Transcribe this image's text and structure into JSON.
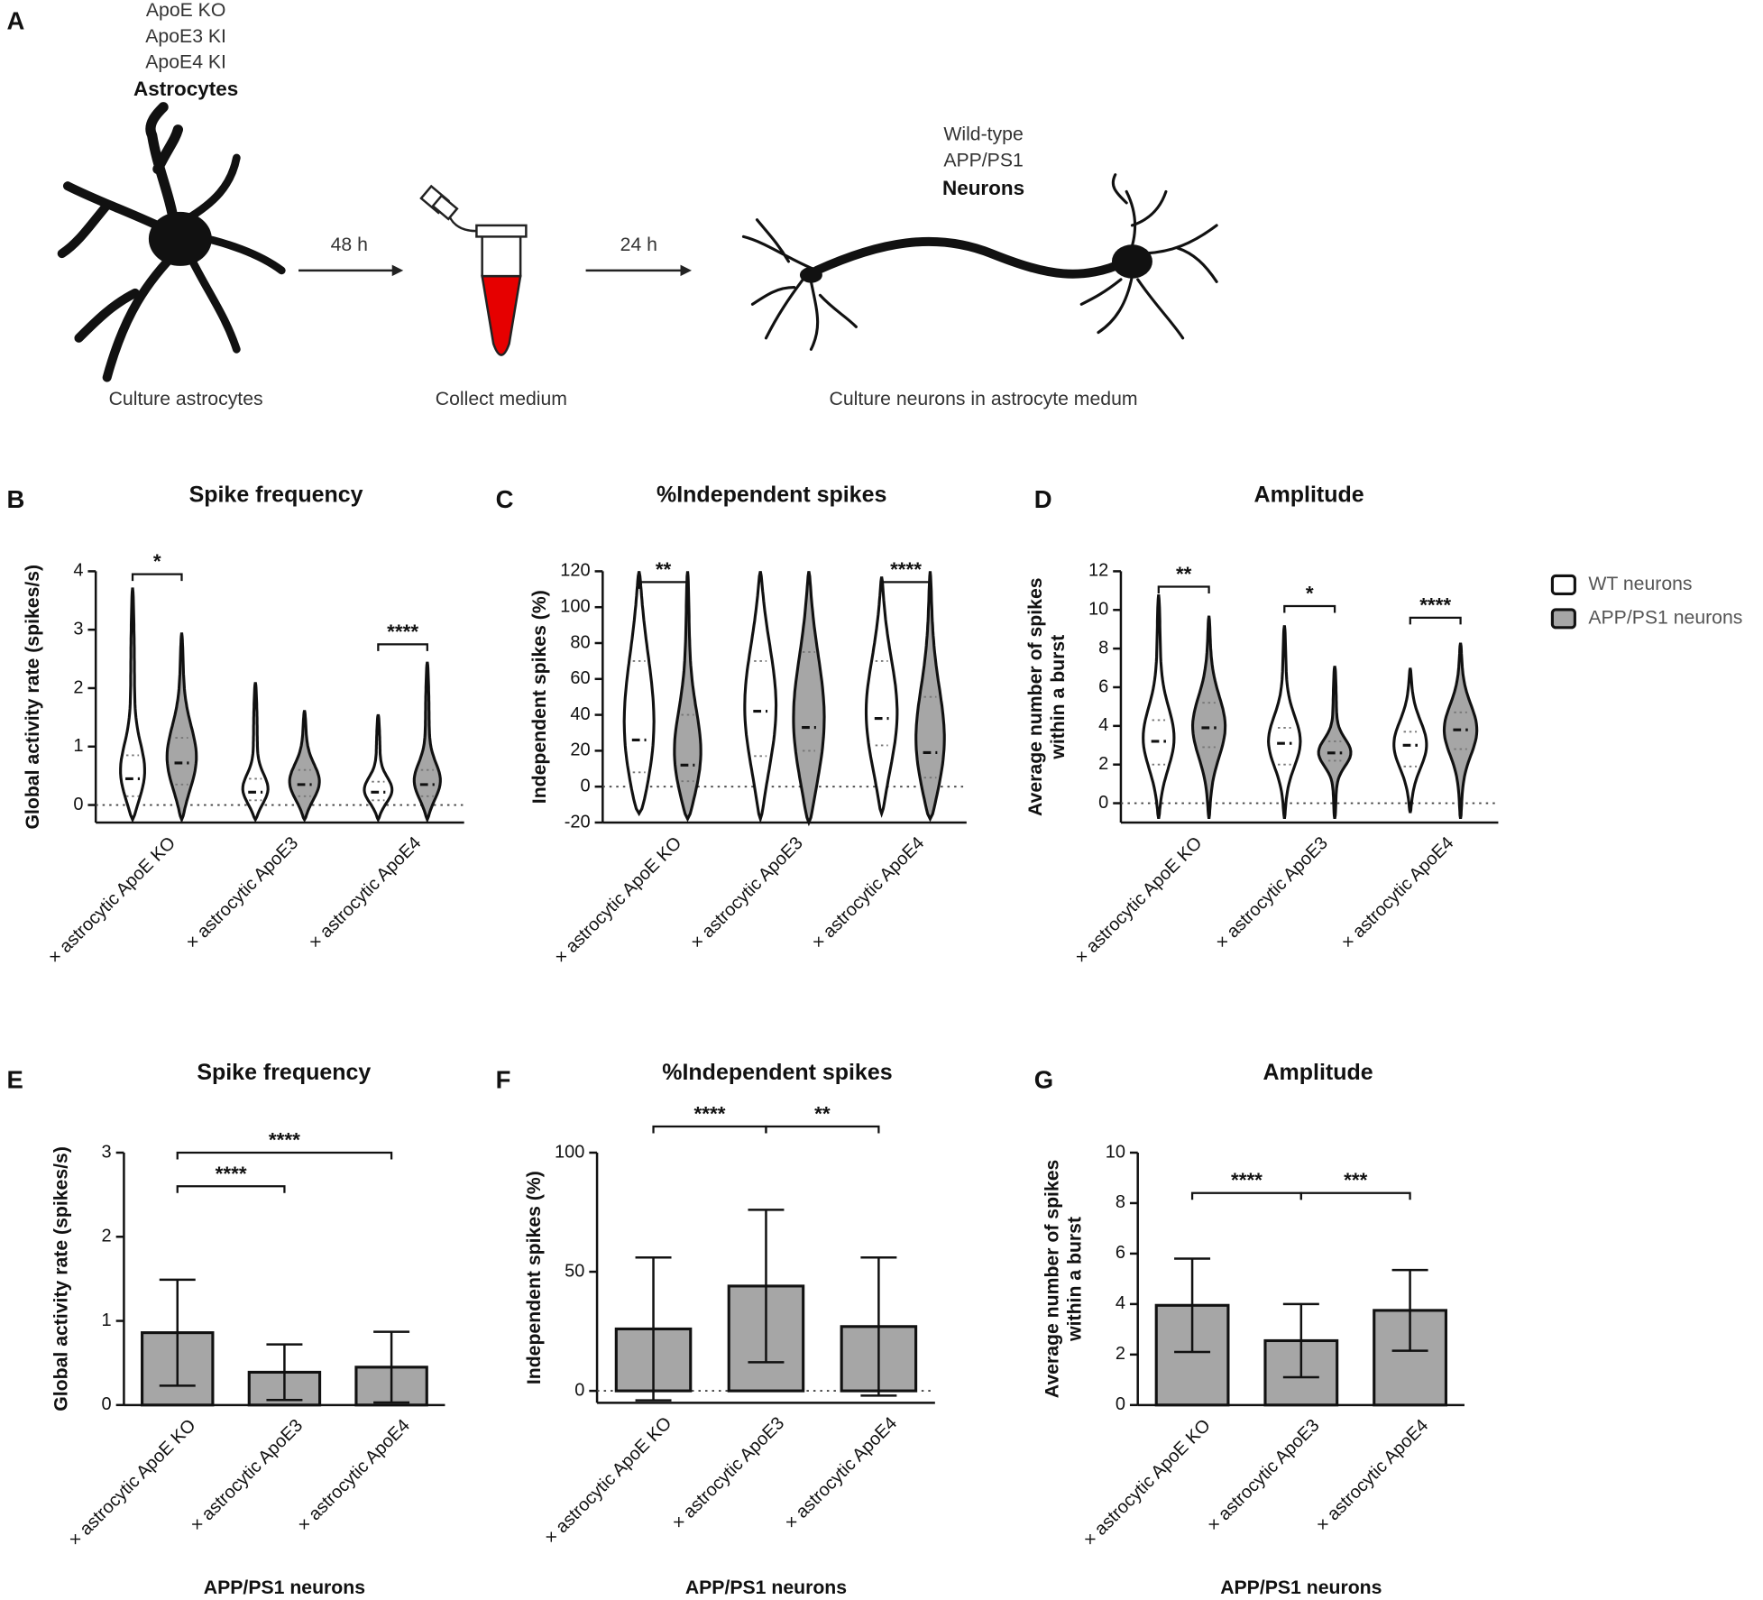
{
  "panel_a": {
    "panel": "A",
    "astrocyte_types": [
      "ApoE KO",
      "ApoE3 KI",
      "ApoE4 KI"
    ],
    "astrocyte_title": "Astrocytes",
    "step1": "48 h",
    "step2": "24 h",
    "neuron_types": [
      "Wild-type",
      "APP/PS1"
    ],
    "neuron_title": "Neurons",
    "captions": [
      "Culture astrocytes",
      "Collect medium",
      "Culture neurons in astrocyte medum"
    ]
  },
  "chart_data": [
    {
      "type": "violin",
      "panel": "B",
      "title": "Spike frequency",
      "ylabel": "Global activity rate (spikes/s)",
      "categories": [
        "× astrocytic ApoE KO",
        "× astrocytic ApoE3",
        "× astrocytic ApoE4"
      ],
      "series": [
        {
          "name": "WT neurons",
          "color": "#ffffff",
          "values": [
            0.45,
            0.22,
            0.22
          ],
          "q1": [
            0.15,
            0.08,
            0.08
          ],
          "q3": [
            0.85,
            0.45,
            0.4
          ],
          "max": [
            3.72,
            2.1,
            1.55
          ],
          "min": [
            -0.25,
            -0.25,
            -0.25
          ]
        },
        {
          "name": "APP/PS1 neurons",
          "color": "#a6a6a6",
          "values": [
            0.72,
            0.35,
            0.35
          ],
          "q1": [
            0.35,
            0.15,
            0.15
          ],
          "q3": [
            1.15,
            0.6,
            0.6
          ],
          "max": [
            2.95,
            1.62,
            2.45
          ],
          "min": [
            -0.25,
            -0.25,
            -0.25
          ]
        }
      ],
      "ylim": [
        -0.3,
        4
      ],
      "yticks": [
        0,
        1,
        2,
        3,
        4
      ],
      "zero_line": true,
      "annotations": [
        {
          "text": "*",
          "from": 0,
          "to": 0,
          "y": 3.95
        },
        {
          "text": "****",
          "from": 2,
          "to": 2,
          "y": 2.75
        }
      ]
    },
    {
      "type": "violin",
      "panel": "C",
      "title": "%Independent spikes",
      "ylabel": "Independent spikes (%)",
      "categories": [
        "× astrocytic ApoE KO",
        "× astrocytic ApoE3",
        "× astrocytic ApoE4"
      ],
      "series": [
        {
          "name": "WT neurons",
          "color": "#ffffff",
          "values": [
            26,
            42,
            38
          ],
          "q1": [
            8,
            17,
            23
          ],
          "q3": [
            70,
            70,
            70
          ],
          "max": [
            120,
            120,
            117
          ],
          "min": [
            -15,
            -18,
            -15
          ]
        },
        {
          "name": "APP/PS1 neurons",
          "color": "#a6a6a6",
          "values": [
            12,
            33,
            19
          ],
          "q1": [
            3,
            20,
            5
          ],
          "q3": [
            40,
            75,
            50
          ],
          "max": [
            120,
            120,
            120
          ],
          "min": [
            -18,
            -20,
            -18
          ]
        }
      ],
      "ylim": [
        -20,
        120
      ],
      "yticks": [
        -20,
        0,
        20,
        40,
        60,
        80,
        100,
        120
      ],
      "zero_line": true,
      "annotations": [
        {
          "text": "**",
          "from": 0,
          "to": 0,
          "y": 114
        },
        {
          "text": "****",
          "from": 2,
          "to": 2,
          "y": 114
        }
      ]
    },
    {
      "type": "violin",
      "panel": "D",
      "title": "Amplitude",
      "ylabel": [
        "Average number of spikes",
        "within a burst"
      ],
      "categories": [
        "× astrocytic ApoE KO",
        "× astrocytic ApoE3",
        "× astrocytic ApoE4"
      ],
      "series": [
        {
          "name": "WT neurons",
          "color": "#ffffff",
          "values": [
            3.2,
            3.1,
            3.0
          ],
          "q1": [
            2.0,
            2.0,
            1.9
          ],
          "q3": [
            4.3,
            3.9,
            3.7
          ],
          "max": [
            10.8,
            9.2,
            7.0
          ],
          "min": [
            -0.8,
            -0.8,
            -0.5
          ]
        },
        {
          "name": "APP/PS1 neurons",
          "color": "#a6a6a6",
          "values": [
            3.9,
            2.6,
            3.8
          ],
          "q1": [
            2.9,
            2.2,
            2.8
          ],
          "q3": [
            5.2,
            3.2,
            4.7
          ],
          "max": [
            9.7,
            7.1,
            8.3
          ],
          "min": [
            -0.8,
            -0.8,
            -0.8
          ]
        }
      ],
      "ylim": [
        -1,
        12
      ],
      "yticks": [
        0,
        2,
        4,
        6,
        8,
        10,
        12
      ],
      "zero_line": true,
      "annotations": [
        {
          "text": "**",
          "from": 0,
          "to": 0,
          "y": 11.2
        },
        {
          "text": "*",
          "from": 1,
          "to": 1,
          "y": 10.2
        },
        {
          "text": "****",
          "from": 2,
          "to": 2,
          "y": 9.6
        }
      ]
    },
    {
      "type": "bar",
      "panel": "E",
      "title": "Spike frequency",
      "ylabel": "Global activity rate (spikes/s)",
      "xlabel": "APP/PS1 neurons",
      "categories": [
        "× astrocytic ApoE KO",
        "× astrocytic ApoE3",
        "× astrocytic ApoE4"
      ],
      "values": [
        0.86,
        0.39,
        0.45
      ],
      "errors": [
        0.63,
        0.33,
        0.42
      ],
      "color": "#a6a6a6",
      "ylim": [
        0,
        3
      ],
      "yticks": [
        0,
        1,
        2,
        3
      ],
      "annotations": [
        {
          "text": "****",
          "from": 0,
          "to": 1,
          "y": 2.6
        },
        {
          "text": "****",
          "from": 0,
          "to": 2,
          "y": 3.0
        }
      ]
    },
    {
      "type": "bar",
      "panel": "F",
      "title": "%Independent spikes",
      "ylabel": "Independent spikes (%)",
      "xlabel": "APP/PS1 neurons",
      "categories": [
        "× astrocytic ApoE KO",
        "× astrocytic ApoE3",
        "× astrocytic ApoE4"
      ],
      "values": [
        26,
        44,
        27
      ],
      "errors": [
        30,
        32,
        29
      ],
      "color": "#a6a6a6",
      "ylim": [
        -5,
        100
      ],
      "yticks": [
        0,
        50,
        100
      ],
      "zero_line": true,
      "annotations": [
        {
          "text": "****",
          "from": 0,
          "to": 1,
          "y": 111
        },
        {
          "text": "**",
          "from": 1,
          "to": 2,
          "y": 111
        }
      ]
    },
    {
      "type": "bar",
      "panel": "G",
      "title": "Amplitude",
      "ylabel": [
        "Average number of spikes",
        "within a burst"
      ],
      "xlabel": "APP/PS1 neurons",
      "categories": [
        "× astrocytic ApoE KO",
        "× astrocytic ApoE3",
        "× astrocytic ApoE4"
      ],
      "values": [
        3.95,
        2.55,
        3.75
      ],
      "errors": [
        1.85,
        1.45,
        1.6
      ],
      "color": "#a6a6a6",
      "ylim": [
        0,
        10
      ],
      "yticks": [
        0,
        2,
        4,
        6,
        8,
        10
      ],
      "annotations": [
        {
          "text": "****",
          "from": 0,
          "to": 1,
          "y": 8.4
        },
        {
          "text": "***",
          "from": 1,
          "to": 2,
          "y": 8.4
        }
      ]
    }
  ]
}
